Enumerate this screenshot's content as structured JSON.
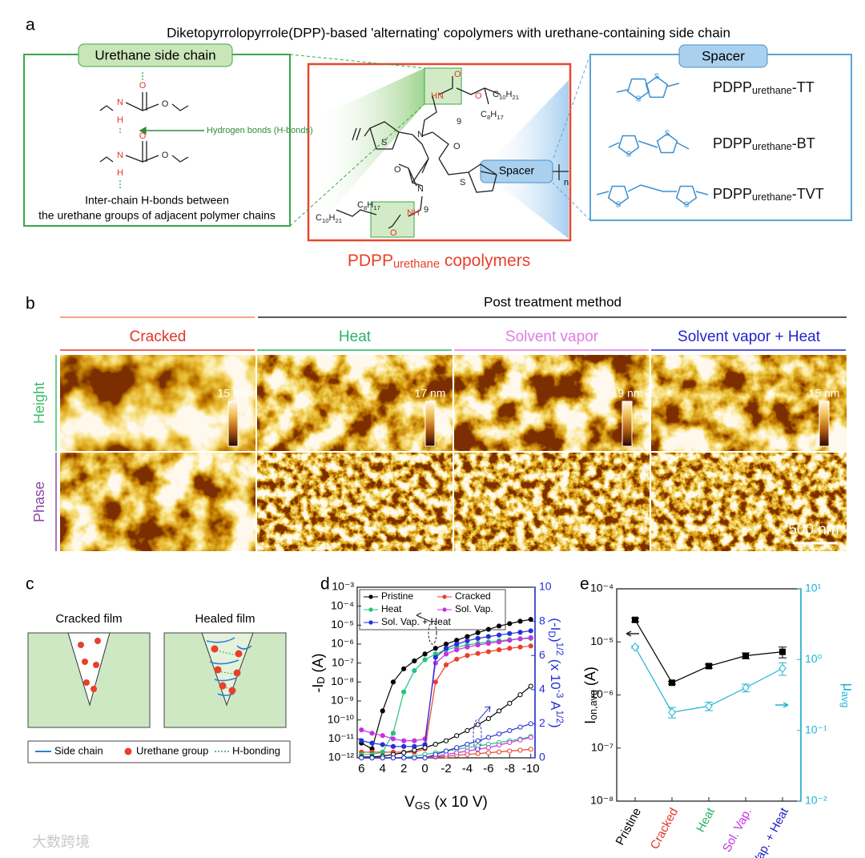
{
  "panel_a": {
    "label": "a",
    "title": "Diketopyrrolopyrrole(DPP)-based 'alternating' copolymers with urethane-containing side chain",
    "side_chain": {
      "title": "Urethane side chain",
      "atoms": [
        "O",
        "N",
        "H",
        "O",
        "O",
        "N",
        "H",
        "O"
      ],
      "hbond_label": "Hydrogen bonds (H-bonds)",
      "caption": [
        "Inter-chain H-bonds between",
        "the urethane groups of adjacent polymer chains"
      ]
    },
    "copolymer": {
      "atoms": [
        [
          "HN"
        ],
        [
          "O"
        ],
        [
          "O"
        ],
        [
          "C",
          "10",
          "H",
          "21"
        ],
        [
          "C",
          "8",
          "H",
          "17"
        ],
        [
          "9"
        ],
        [
          "N"
        ],
        [
          "O"
        ],
        [
          "S"
        ],
        [
          "O"
        ],
        [
          "N"
        ],
        [
          "S"
        ],
        [
          "C",
          "8",
          "H",
          "17"
        ],
        [
          "9"
        ],
        [
          "C",
          "10",
          "H",
          "21"
        ],
        [
          "NH"
        ],
        [
          "O"
        ]
      ],
      "spacer": "Spacer",
      "repeat": "n",
      "caption": [
        "PDPP",
        "urethane",
        " copolymers"
      ]
    },
    "spacers": {
      "title": "Spacer",
      "rows": [
        {
          "atoms": [
            "S",
            "S"
          ],
          "name": [
            "PDPP",
            "urethane",
            "-TT"
          ]
        },
        {
          "atoms": [
            "S",
            "S"
          ],
          "name": [
            "PDPP",
            "urethane",
            "-BT"
          ]
        },
        {
          "atoms": [
            "S",
            "S"
          ],
          "name": [
            "PDPP",
            "urethane",
            "-TVT"
          ]
        }
      ]
    }
  },
  "panel_b": {
    "label": "b",
    "title": "Post treatment method",
    "columns": [
      {
        "name": "Cracked",
        "color": "#e0362b",
        "height_scale": "15 nm"
      },
      {
        "name": "Heat",
        "color": "#27b564",
        "height_scale": "17 nm"
      },
      {
        "name": "Solvent vapor",
        "color": "#e27ce4",
        "height_scale": "19 nm"
      },
      {
        "name": "Solvent vapor + Heat",
        "color": "#2323c8",
        "height_scale": "15 nm"
      }
    ],
    "rows": [
      {
        "name": "Height",
        "color": "#3dbd6c"
      },
      {
        "name": "Phase",
        "color": "#8b4aa6"
      }
    ],
    "scale_bar": "500 nm"
  },
  "panel_c": {
    "label": "c",
    "films": [
      "Cracked film",
      "Healed film"
    ],
    "legend": [
      "Side chain",
      "Urethane group",
      "H-bonding"
    ]
  },
  "chart_data": [
    {
      "label": "d",
      "type": "line",
      "x_label": [
        "V",
        "GS",
        " (x 10 V)"
      ],
      "y_label": [
        "-I",
        "D",
        " (A)"
      ],
      "y2_label": [
        "(-I",
        "D",
        ")",
        "1/2",
        " (x 10",
        "-3",
        " A",
        "1/2",
        ")"
      ],
      "log_y": true,
      "legend": "upper left",
      "xlim": [
        6.4,
        -10.4
      ],
      "xticks": [
        6,
        4,
        2,
        0,
        -2,
        -4,
        -6,
        -8,
        -10
      ],
      "ylim": [
        1e-12,
        0.001
      ],
      "yticks": [
        {
          "value": 1e-12,
          "label": "10⁻¹²"
        },
        {
          "value": 1e-11,
          "label": "10⁻¹¹"
        },
        {
          "value": 1e-10,
          "label": "10⁻¹⁰"
        },
        {
          "value": 1e-09,
          "label": "10⁻⁹"
        },
        {
          "value": 1e-08,
          "label": "10⁻⁸"
        },
        {
          "value": 1e-07,
          "label": "10⁻⁷"
        },
        {
          "value": 1e-06,
          "label": "10⁻⁶"
        },
        {
          "value": 1e-05,
          "label": "10⁻⁵"
        },
        {
          "value": 0.0001,
          "label": "10⁻⁴"
        },
        {
          "value": 0.001,
          "label": "10⁻³"
        }
      ],
      "y2lim": [
        0,
        10
      ],
      "y2ticks": [
        0,
        2,
        4,
        6,
        8,
        10
      ],
      "y2_color": "#2431d6",
      "x": [
        6,
        5,
        4,
        3,
        2,
        1,
        0,
        -1,
        -2,
        -3,
        -4,
        -5,
        -6,
        -7,
        -8,
        -9,
        -10
      ],
      "series": [
        {
          "name": "Pristine",
          "color": "#000000",
          "marker": "circle",
          "values": [
            6e-12,
            3e-12,
            3e-10,
            1e-08,
            5e-08,
            1.3e-07,
            3e-07,
            6e-07,
            1e-06,
            1.6e-06,
            2.5e-06,
            4e-06,
            6e-06,
            9e-06,
            1.2e-05,
            1.6e-05,
            2e-05
          ]
        },
        {
          "name": "Cracked",
          "color": "#e8402a",
          "marker": "circle",
          "values": [
            2e-12,
            2e-12,
            2e-12,
            2e-12,
            2e-12,
            2e-12,
            3e-12,
            1e-08,
            8e-08,
            1.6e-07,
            2.5e-07,
            3.2e-07,
            4e-07,
            5e-07,
            6e-07,
            7e-07,
            8e-07
          ]
        },
        {
          "name": "Heat",
          "color": "#22c47a",
          "marker": "circle",
          "values": [
            1.5e-12,
            1.5e-12,
            2e-12,
            2e-11,
            3e-09,
            4e-08,
            1.5e-07,
            3e-07,
            5e-07,
            7e-07,
            9e-07,
            1.1e-06,
            1.3e-06,
            1.5e-06,
            1.7e-06,
            1.9e-06,
            2e-06
          ]
        },
        {
          "name": "Sol. Vap.",
          "color": "#c433e0",
          "marker": "circle",
          "values": [
            3e-11,
            2e-11,
            1.5e-11,
            1e-11,
            8e-12,
            8e-12,
            1e-11,
            1e-07,
            3e-07,
            5e-07,
            7e-07,
            9e-07,
            1.1e-06,
            1.3e-06,
            1.6e-06,
            1.9e-06,
            2.2e-06
          ]
        },
        {
          "name": "Sol. Vap. + Heat",
          "color": "#2431d6",
          "marker": "circle",
          "values": [
            8e-12,
            6e-12,
            5e-12,
            4e-12,
            4e-12,
            4e-12,
            5e-12,
            2e-07,
            6e-07,
            1e-06,
            1.5e-06,
            2e-06,
            2.5e-06,
            3e-06,
            3.6e-06,
            4.2e-06,
            5e-06
          ]
        },
        {
          "axis": "y2",
          "color": "#000000",
          "marker": "open-circle",
          "values": [
            0.05,
            0.05,
            0.1,
            0.2,
            0.3,
            0.45,
            0.6,
            0.8,
            1,
            1.3,
            1.6,
            1.95,
            2.3,
            2.75,
            3.2,
            3.7,
            4.2
          ]
        },
        {
          "axis": "y2",
          "color": "#e8402a",
          "marker": "open-circle",
          "values": [
            0,
            0,
            0,
            0,
            0,
            0,
            0,
            0.05,
            0.1,
            0.15,
            0.2,
            0.25,
            0.3,
            0.35,
            0.4,
            0.45,
            0.5
          ]
        },
        {
          "axis": "y2",
          "color": "#22c47a",
          "marker": "open-circle",
          "values": [
            0,
            0,
            0,
            0,
            0.02,
            0.1,
            0.2,
            0.3,
            0.4,
            0.5,
            0.6,
            0.7,
            0.8,
            0.9,
            1,
            1.1,
            1.25
          ]
        },
        {
          "axis": "y2",
          "color": "#c433e0",
          "marker": "open-circle",
          "values": [
            0,
            0,
            0,
            0,
            0,
            0,
            0.02,
            0.1,
            0.2,
            0.3,
            0.4,
            0.5,
            0.6,
            0.75,
            0.9,
            1.05,
            1.2
          ]
        },
        {
          "axis": "y2",
          "color": "#2431d6",
          "marker": "open-circle",
          "values": [
            0,
            0,
            0,
            0,
            0,
            0,
            0,
            0.2,
            0.4,
            0.6,
            0.8,
            1,
            1.2,
            1.4,
            1.6,
            1.8,
            2
          ]
        }
      ]
    },
    {
      "label": "e",
      "type": "line",
      "y_label": [
        "I",
        "on,avg",
        " (A)"
      ],
      "y2_label": [
        "μ",
        "avg"
      ],
      "log_y": true,
      "log_y2": true,
      "categories": [
        "Pristine",
        "Cracked",
        "Heat",
        "Sol. Vap.",
        "Sol. Vap. + Heat"
      ],
      "category_colors": [
        "#000000",
        "#e0362b",
        "#27b564",
        "#c433e0",
        "#2323c8"
      ],
      "ylim": [
        1e-08,
        0.0001
      ],
      "yticks": [
        {
          "value": 1e-08,
          "label": "10⁻⁸"
        },
        {
          "value": 1e-07,
          "label": "10⁻⁷"
        },
        {
          "value": 1e-06,
          "label": "10⁻⁶"
        },
        {
          "value": 1e-05,
          "label": "10⁻⁵"
        },
        {
          "value": 0.0001,
          "label": "10⁻⁴"
        }
      ],
      "y2lim": [
        0.01,
        10
      ],
      "y2ticks": [
        {
          "value": 0.01,
          "label": "10⁻²"
        },
        {
          "value": 0.1,
          "label": "10⁻¹"
        },
        {
          "value": 1,
          "label": "10⁰"
        },
        {
          "value": 10,
          "label": "10¹"
        }
      ],
      "y2_color": "#1fb3d6",
      "series": [
        {
          "color": "#000000",
          "marker": "square",
          "values": [
            2.6e-05,
            1.7e-06,
            3.5e-06,
            5.5e-06,
            6.5e-06
          ],
          "errors": [
            2e-06,
            1e-07,
            3e-07,
            7e-07,
            1.5e-06
          ]
        },
        {
          "axis": "y2",
          "color": "#1fb3d6",
          "marker": "open-diamond",
          "values": [
            1.5,
            0.18,
            0.22,
            0.4,
            0.75
          ],
          "errors": [
            0.05,
            0.03,
            0.03,
            0.05,
            0.15
          ]
        }
      ]
    }
  ],
  "watermark": "大数跨境"
}
